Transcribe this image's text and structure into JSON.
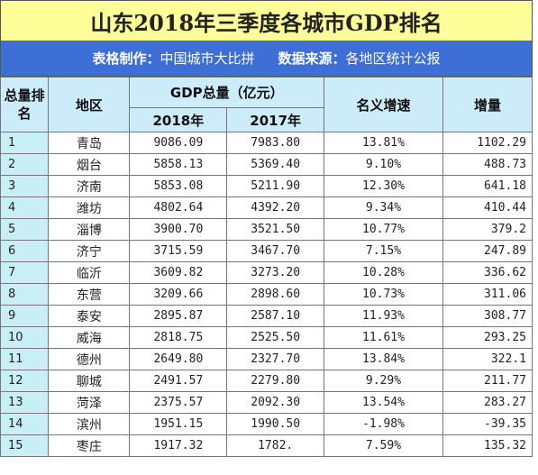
{
  "title": "山东2018年三季度各城市GDP排名",
  "subtitle": {
    "maker_label": "表格制作：",
    "maker": "中国城市大比拼",
    "source_label": "数据来源：",
    "source": "各地区统计公报"
  },
  "header": {
    "rank": "总量排名",
    "region": "地区",
    "gdp": "GDP总量（亿元）",
    "year_2018": "2018年",
    "year_2017": "2017年",
    "growth": "名义增速",
    "increase": "增量"
  },
  "rows": [
    {
      "rank": "1",
      "region": "青岛",
      "gdp2018": "9086.09",
      "gdp2017": "7983.80",
      "growth": "13.81%",
      "increase": "1102.29"
    },
    {
      "rank": "2",
      "region": "烟台",
      "gdp2018": "5858.13",
      "gdp2017": "5369.40",
      "growth": "9.10%",
      "increase": "488.73"
    },
    {
      "rank": "3",
      "region": "济南",
      "gdp2018": "5853.08",
      "gdp2017": "5211.90",
      "growth": "12.30%",
      "increase": "641.18"
    },
    {
      "rank": "4",
      "region": "潍坊",
      "gdp2018": "4802.64",
      "gdp2017": "4392.20",
      "growth": "9.34%",
      "increase": "410.44"
    },
    {
      "rank": "5",
      "region": "淄博",
      "gdp2018": "3900.70",
      "gdp2017": "3521.50",
      "growth": "10.77%",
      "increase": "379.2"
    },
    {
      "rank": "6",
      "region": "济宁",
      "gdp2018": "3715.59",
      "gdp2017": "3467.70",
      "growth": "7.15%",
      "increase": "247.89"
    },
    {
      "rank": "7",
      "region": "临沂",
      "gdp2018": "3609.82",
      "gdp2017": "3273.20",
      "growth": "10.28%",
      "increase": "336.62"
    },
    {
      "rank": "8",
      "region": "东营",
      "gdp2018": "3209.66",
      "gdp2017": "2898.60",
      "growth": "10.73%",
      "increase": "311.06"
    },
    {
      "rank": "9",
      "region": "泰安",
      "gdp2018": "2895.87",
      "gdp2017": "2587.10",
      "growth": "11.93%",
      "increase": "308.77"
    },
    {
      "rank": "10",
      "region": "威海",
      "gdp2018": "2818.75",
      "gdp2017": "2525.50",
      "growth": "11.61%",
      "increase": "293.25"
    },
    {
      "rank": "11",
      "region": "德州",
      "gdp2018": "2649.80",
      "gdp2017": "2327.70",
      "growth": "13.84%",
      "increase": "322.1"
    },
    {
      "rank": "12",
      "region": "聊城",
      "gdp2018": "2491.57",
      "gdp2017": "2279.80",
      "growth": "9.29%",
      "increase": "211.77"
    },
    {
      "rank": "13",
      "region": "菏泽",
      "gdp2018": "2375.57",
      "gdp2017": "2092.30",
      "growth": "13.54%",
      "increase": "283.27"
    },
    {
      "rank": "14",
      "region": "滨州",
      "gdp2018": "1951.15",
      "gdp2017": "1990.50",
      "growth": "-1.98%",
      "increase": "-39.35"
    },
    {
      "rank": "15",
      "region": "枣庄",
      "gdp2018": "1917.32",
      "gdp2017": "1782.",
      "growth": "7.59%",
      "increase": "135.32"
    }
  ]
}
